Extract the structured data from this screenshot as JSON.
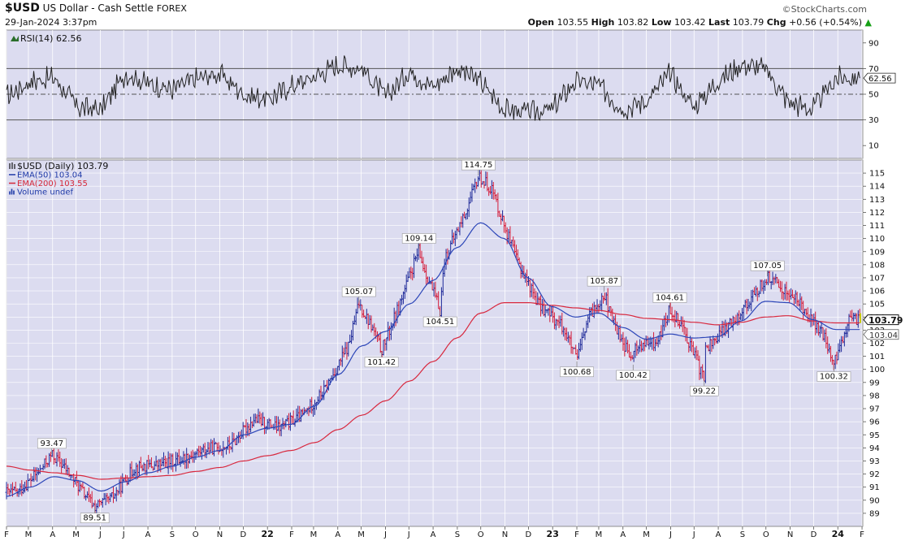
{
  "header": {
    "symbol": "$USD",
    "name": "US Dollar - Cash Settle",
    "exchange": "FOREX",
    "brand": "©StockCharts.com",
    "datetime": "29-Jan-2024 3:37pm",
    "open_label": "Open",
    "open": "103.55",
    "high_label": "High",
    "high": "103.82",
    "low_label": "Low",
    "low": "103.42",
    "last_label": "Last",
    "last": "103.79",
    "chg_label": "Chg",
    "chg": "+0.56 (+0.54%)",
    "chg_arrow": "▲",
    "chg_color": "#16a016"
  },
  "rsi_panel": {
    "legend": "RSI(14) 62.56",
    "ticks": [
      90,
      70,
      50,
      30,
      10
    ],
    "reference_lines": [
      70,
      50,
      30
    ],
    "ylim": [
      0,
      100
    ],
    "current_label": "62.56",
    "current_value": 62.56
  },
  "price_panel": {
    "legend": [
      {
        "text": "$USD (Daily) 103.79",
        "color": "#111111"
      },
      {
        "text": "EMA(50) 103.04",
        "color": "#1f3aa8"
      },
      {
        "text": "EMA(200) 103.55",
        "color": "#d62839"
      },
      {
        "text": "Volume undef",
        "color": "#1f3aa8"
      }
    ],
    "last_price_label": "103.79",
    "ema50_label": "103.04"
  },
  "colors": {
    "panel_bg": "#dcdcf0",
    "grid": "#ffffff",
    "up": "#1f2a99",
    "down": "#d41c3a",
    "ema50": "#2c46b8",
    "ema200": "#d8283e",
    "rsi": "#222222"
  },
  "chart_data": [
    {
      "type": "line",
      "title": "RSI(14)",
      "ylim": [
        0,
        100
      ],
      "x": [
        "2021-02",
        "2021-03",
        "2021-04",
        "2021-05",
        "2021-06",
        "2021-07",
        "2021-08",
        "2021-09",
        "2021-10",
        "2021-11",
        "2021-12",
        "2022-01",
        "2022-02",
        "2022-03",
        "2022-04",
        "2022-05",
        "2022-06",
        "2022-07",
        "2022-08",
        "2022-09",
        "2022-10",
        "2022-11",
        "2022-12",
        "2023-01",
        "2023-02",
        "2023-03",
        "2023-04",
        "2023-05",
        "2023-06",
        "2023-07",
        "2023-08",
        "2023-09",
        "2023-10",
        "2023-11",
        "2023-12",
        "2024-01"
      ],
      "series": [
        {
          "name": "RSI(14)",
          "values": [
            48,
            60,
            63,
            40,
            38,
            66,
            58,
            54,
            62,
            66,
            50,
            46,
            56,
            64,
            73,
            70,
            48,
            68,
            56,
            70,
            60,
            38,
            36,
            38,
            60,
            57,
            38,
            45,
            66,
            40,
            60,
            73,
            70,
            44,
            38,
            62.56
          ]
        }
      ]
    },
    {
      "type": "line",
      "title": "$USD (Daily)",
      "ylim": [
        88,
        116
      ],
      "y_ticks": [
        89,
        90,
        91,
        92,
        93,
        94,
        95,
        96,
        97,
        98,
        99,
        100,
        101,
        102,
        103,
        104,
        105,
        106,
        107,
        108,
        109,
        110,
        111,
        112,
        113,
        114,
        115
      ],
      "x_tick_labels": [
        "F",
        "M",
        "A",
        "M",
        "J",
        "J",
        "A",
        "S",
        "O",
        "N",
        "D",
        "22",
        "F",
        "M",
        "A",
        "M",
        "J",
        "J",
        "A",
        "S",
        "O",
        "N",
        "D",
        "23",
        "F",
        "M",
        "A",
        "M",
        "J",
        "J",
        "A",
        "S",
        "O",
        "N",
        "D",
        "24",
        "F"
      ],
      "x": [
        "2021-02",
        "2021-03",
        "2021-04",
        "2021-05",
        "2021-06",
        "2021-07",
        "2021-08",
        "2021-09",
        "2021-10",
        "2021-11",
        "2021-12",
        "2022-01",
        "2022-02",
        "2022-03",
        "2022-04",
        "2022-05",
        "2022-06",
        "2022-07",
        "2022-08",
        "2022-09",
        "2022-10",
        "2022-11",
        "2022-12",
        "2023-01",
        "2023-02",
        "2023-03",
        "2023-04",
        "2023-05",
        "2023-06",
        "2023-07",
        "2023-08",
        "2023-09",
        "2023-10",
        "2023-11",
        "2023-12",
        "2024-01"
      ],
      "series": [
        {
          "name": "$USD",
          "values": [
            90.6,
            92.2,
            92.6,
            90.2,
            90.1,
            92.5,
            92.7,
            93.2,
            93.9,
            94.2,
            96.2,
            95.5,
            96.5,
            98.4,
            101.8,
            103.2,
            104.3,
            108.6,
            108.3,
            112.5,
            113.8,
            108.5,
            104.9,
            103.2,
            103.8,
            104.3,
            101.6,
            102.1,
            103.5,
            101.5,
            103.4,
            105.6,
            106.5,
            105.0,
            102.4,
            103.79
          ]
        },
        {
          "name": "EMA(50)",
          "values": [
            90.3,
            91.0,
            91.8,
            91.5,
            90.7,
            91.4,
            92.1,
            92.6,
            93.3,
            93.8,
            95.0,
            95.5,
            95.8,
            97.2,
            99.6,
            101.8,
            102.9,
            105.0,
            106.8,
            109.3,
            111.2,
            110.0,
            107.0,
            104.8,
            104.0,
            104.3,
            103.2,
            102.3,
            102.7,
            102.4,
            102.5,
            103.7,
            105.2,
            105.1,
            103.8,
            103.04
          ]
        },
        {
          "name": "EMA(200)",
          "values": [
            92.6,
            92.3,
            92.1,
            91.9,
            91.6,
            91.7,
            91.8,
            91.9,
            92.2,
            92.5,
            93.0,
            93.4,
            93.8,
            94.4,
            95.4,
            96.5,
            97.6,
            99.1,
            100.6,
            102.4,
            104.3,
            105.1,
            105.1,
            104.9,
            104.7,
            104.5,
            104.2,
            103.9,
            103.8,
            103.6,
            103.4,
            103.6,
            104.0,
            104.1,
            103.7,
            103.55
          ]
        }
      ],
      "annotations": [
        {
          "x": "2021-03-31",
          "y": 93.47,
          "label": "93.47",
          "position": "above"
        },
        {
          "x": "2021-05-25",
          "y": 89.51,
          "label": "89.51",
          "position": "below"
        },
        {
          "x": "2022-04-28",
          "y": 105.07,
          "label": "105.07",
          "position": "above"
        },
        {
          "x": "2022-05-27",
          "y": 101.42,
          "label": "101.42",
          "position": "below"
        },
        {
          "x": "2022-07-14",
          "y": 109.14,
          "label": "109.14",
          "position": "above"
        },
        {
          "x": "2022-08-10",
          "y": 104.51,
          "label": "104.51",
          "position": "below"
        },
        {
          "x": "2022-09-28",
          "y": 114.75,
          "label": "114.75",
          "position": "above"
        },
        {
          "x": "2023-02-01",
          "y": 100.68,
          "label": "100.68",
          "position": "below"
        },
        {
          "x": "2023-03-08",
          "y": 105.87,
          "label": "105.87",
          "position": "above"
        },
        {
          "x": "2023-04-14",
          "y": 100.42,
          "label": "100.42",
          "position": "below"
        },
        {
          "x": "2023-05-31",
          "y": 104.61,
          "label": "104.61",
          "position": "above"
        },
        {
          "x": "2023-07-14",
          "y": 99.22,
          "label": "99.22",
          "position": "below"
        },
        {
          "x": "2023-10-03",
          "y": 107.05,
          "label": "107.05",
          "position": "above"
        },
        {
          "x": "2023-12-27",
          "y": 100.32,
          "label": "100.32",
          "position": "below"
        }
      ]
    }
  ]
}
